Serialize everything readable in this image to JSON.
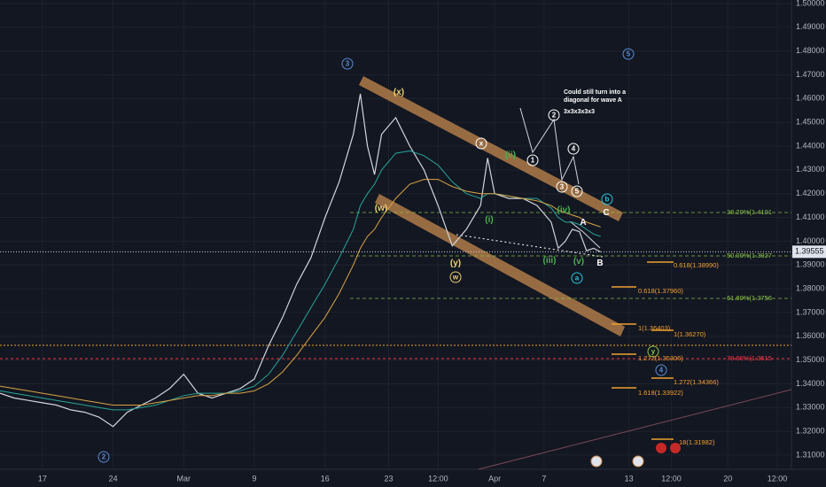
{
  "chart_data": {
    "type": "line",
    "grid": true,
    "x": [
      -3,
      -2,
      -1,
      0,
      1,
      2,
      3,
      4,
      5,
      6,
      7,
      8,
      9,
      10,
      11,
      12,
      13,
      14,
      15,
      16,
      17,
      18,
      19,
      20,
      21,
      22,
      22.5,
      23,
      23.5,
      24,
      25,
      26,
      27,
      28,
      29,
      30,
      31,
      31.5,
      32,
      33,
      34,
      35,
      36,
      36.5,
      37,
      37.5,
      38,
      38.5,
      39,
      39.5
    ],
    "xlim": [
      -3,
      53
    ],
    "xticks": [
      {
        "value": 0,
        "label": "17"
      },
      {
        "value": 5,
        "label": "24"
      },
      {
        "value": 10,
        "label": "Mar"
      },
      {
        "value": 15,
        "label": "9"
      },
      {
        "value": 20,
        "label": "16"
      },
      {
        "value": 24.5,
        "label": "23"
      },
      {
        "value": 28,
        "label": "12:00"
      },
      {
        "value": 32,
        "label": "Apr"
      },
      {
        "value": 35.5,
        "label": "7"
      },
      {
        "value": 41.5,
        "label": "13"
      },
      {
        "value": 44.5,
        "label": "12:00"
      },
      {
        "value": 48.5,
        "label": "20"
      },
      {
        "value": 52,
        "label": "12:00"
      }
    ],
    "ylim": [
      1.304,
      1.5015
    ],
    "yticks": [
      {
        "value": 1.31,
        "label": "1.31000"
      },
      {
        "value": 1.32,
        "label": "1.32000"
      },
      {
        "value": 1.33,
        "label": "1.33000"
      },
      {
        "value": 1.34,
        "label": "1.34000"
      },
      {
        "value": 1.35,
        "label": "1.35000"
      },
      {
        "value": 1.36,
        "label": "1.36000"
      },
      {
        "value": 1.37,
        "label": "1.37000"
      },
      {
        "value": 1.38,
        "label": "1.38000"
      },
      {
        "value": 1.39,
        "label": "1.39000"
      },
      {
        "value": 1.4,
        "label": "1.40000"
      },
      {
        "value": 1.41,
        "label": "1.41000"
      },
      {
        "value": 1.42,
        "label": "1.42000"
      },
      {
        "value": 1.43,
        "label": "1.43000"
      },
      {
        "value": 1.44,
        "label": "1.44000"
      },
      {
        "value": 1.45,
        "label": "1.45000"
      },
      {
        "value": 1.46,
        "label": "1.46000"
      },
      {
        "value": 1.47,
        "label": "1.47000"
      },
      {
        "value": 1.48,
        "label": "1.48000"
      },
      {
        "value": 1.49,
        "label": "1.49000"
      },
      {
        "value": 1.5,
        "label": "1.50000"
      }
    ],
    "last_price": 1.39555,
    "series": [
      {
        "color": "#d1d4dc",
        "values": [
          1.336,
          1.334,
          1.333,
          1.332,
          1.331,
          1.329,
          1.328,
          1.326,
          1.322,
          1.328,
          1.331,
          1.334,
          1.338,
          1.344,
          1.336,
          1.334,
          1.336,
          1.338,
          1.342,
          1.356,
          1.368,
          1.382,
          1.393,
          1.41,
          1.425,
          1.445,
          1.462,
          1.44,
          1.428,
          1.445,
          1.452,
          1.44,
          1.43,
          1.415,
          1.398,
          1.405,
          1.415,
          1.435,
          1.42,
          1.418,
          1.418,
          1.415,
          1.408,
          1.397,
          1.4,
          1.405,
          1.404,
          1.396,
          1.397,
          1.3955
        ]
      },
      {
        "color": "#26a69a",
        "values": [
          1.337,
          1.336,
          1.335,
          1.334,
          1.333,
          1.332,
          1.331,
          1.33,
          1.329,
          1.329,
          1.33,
          1.331,
          1.333,
          1.335,
          1.336,
          1.336,
          1.336,
          1.337,
          1.339,
          1.344,
          1.352,
          1.362,
          1.372,
          1.382,
          1.393,
          1.405,
          1.415,
          1.42,
          1.424,
          1.43,
          1.437,
          1.438,
          1.436,
          1.432,
          1.425,
          1.42,
          1.418,
          1.42,
          1.42,
          1.419,
          1.418,
          1.418,
          1.414,
          1.41,
          1.408,
          1.408,
          1.407,
          1.405,
          1.403,
          1.402
        ]
      },
      {
        "color": "#d9a441",
        "values": [
          1.339,
          1.338,
          1.337,
          1.336,
          1.335,
          1.334,
          1.333,
          1.332,
          1.331,
          1.331,
          1.331,
          1.332,
          1.333,
          1.334,
          1.335,
          1.335,
          1.336,
          1.336,
          1.337,
          1.34,
          1.345,
          1.352,
          1.36,
          1.368,
          1.378,
          1.39,
          1.397,
          1.402,
          1.405,
          1.41,
          1.418,
          1.424,
          1.426,
          1.426,
          1.423,
          1.421,
          1.42,
          1.42,
          1.42,
          1.419,
          1.418,
          1.417,
          1.415,
          1.413,
          1.412,
          1.411,
          1.41,
          1.408,
          1.407,
          1.406
        ]
      }
    ],
    "annotations": {
      "wave_labels": [
        {
          "text": "(x)",
          "color": "#f0d070"
        },
        {
          "text": "(w)",
          "color": "#f0d070"
        },
        {
          "text": "(y)",
          "color": "#f0d070"
        },
        {
          "text": "w",
          "color": "#f0d070",
          "circled": true
        },
        {
          "text": "x",
          "color": "#ffffff",
          "circled": true
        },
        {
          "text": "(i)",
          "color": "#4caf50"
        },
        {
          "text": "(ii)",
          "color": "#4caf50"
        },
        {
          "text": "(iii)",
          "color": "#4caf50"
        },
        {
          "text": "(iv)",
          "color": "#4caf50"
        },
        {
          "text": "(v)",
          "color": "#4caf50"
        },
        {
          "text": "a",
          "color": "#26c6da",
          "circled": true
        },
        {
          "text": "b",
          "color": "#26c6da",
          "circled": true
        },
        {
          "text": "A",
          "color": "#ffffff"
        },
        {
          "text": "B",
          "color": "#ffffff"
        },
        {
          "text": "C",
          "color": "#ffffff"
        },
        {
          "text": "y",
          "color": "#8bc34a",
          "circled": true
        },
        {
          "text": "1",
          "color": "#ffffff",
          "circled": true
        },
        {
          "text": "2",
          "color": "#ffffff",
          "circled": true
        },
        {
          "text": "3",
          "color": "#ffffff",
          "circled": true
        },
        {
          "text": "4",
          "color": "#ffffff",
          "circled": true
        },
        {
          "text": "5",
          "color": "#ffffff",
          "circled": true
        },
        {
          "text": "3",
          "color": "#5b8bd6",
          "circled": true
        },
        {
          "text": "5",
          "color": "#5b8bd6",
          "circled": true
        },
        {
          "text": "2",
          "color": "#5b8bd6",
          "circled": true
        },
        {
          "text": "4",
          "color": "#5b8bd6",
          "circled": true
        }
      ],
      "note": [
        "Could still turn into a",
        "diagonal for wave A",
        "3x3x3x3x3"
      ],
      "fib_labels": [
        {
          "text": "38.20%(1.4101",
          "color": "#8bc34a"
        },
        {
          "text": "50.00%(1.3927",
          "color": "#8bc34a"
        },
        {
          "text": "61.80%(1.3756",
          "color": "#8bc34a"
        },
        {
          "text": "78.60%(1.3515",
          "color": "#f23645"
        },
        {
          "text": "0.618(1.38990)",
          "color": "#f0a030"
        },
        {
          "text": "0.618(1.37960)",
          "color": "#f0a030"
        },
        {
          "text": "1(1.36403)",
          "color": "#f0a030"
        },
        {
          "text": "1(1.36270)",
          "color": "#f0a030"
        },
        {
          "text": "1.272(1.35306)",
          "color": "#f0a030"
        },
        {
          "text": "1.272(1.34366)",
          "color": "#f0a030"
        },
        {
          "text": "1.618(1.33922)",
          "color": "#f0a030"
        },
        {
          "text": "18(1.31982)",
          "color": "#f0a030"
        }
      ]
    }
  }
}
